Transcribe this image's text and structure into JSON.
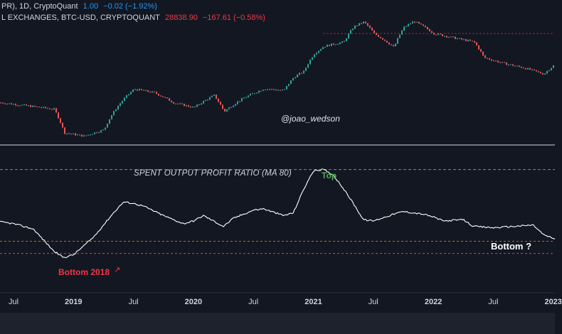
{
  "header": {
    "line1": {
      "symbol_suffix": "PR), 1D, CryptoQuant",
      "value": "1.00",
      "change": "−0.02 (−1.92%)"
    },
    "line2": {
      "symbol": "L EXCHANGES, BTC-USD, CRYPTOQUANT",
      "value": "28838.90",
      "change": "−167.61 (−0.58%)"
    }
  },
  "watermark": "@joao_wedson",
  "indicator_title": "SPENT OUTPUT PROFIT RATIO (MA 80)",
  "annotations": {
    "top": "Top",
    "bottom_2018": "Bottom 2018",
    "bottom_2018_arrow": "↗",
    "bottom_q": "Bottom ?"
  },
  "x_axis": {
    "ticks": [
      {
        "label": "Jul",
        "year": false
      },
      {
        "label": "2019",
        "year": true
      },
      {
        "label": "Jul",
        "year": false
      },
      {
        "label": "2020",
        "year": true
      },
      {
        "label": "Jul",
        "year": false
      },
      {
        "label": "2021",
        "year": true
      },
      {
        "label": "Jul",
        "year": false
      },
      {
        "label": "2022",
        "year": true
      },
      {
        "label": "Jul",
        "year": false
      },
      {
        "label": "2023",
        "year": true
      }
    ]
  },
  "colors": {
    "background": "#131722",
    "bull_candle": "#26a69a",
    "bear_candle": "#ef5350",
    "price_wick": "#b2b5be",
    "sopr_line": "#ffffff",
    "top_line": "#4caf50",
    "bottom_line": "#f23645",
    "orange_line": "#ff9800",
    "price_level_line": "#f23645"
  },
  "chart_data": [
    {
      "type": "line",
      "title": "",
      "series": [
        {
          "name": "",
          "x": [
            "2018-05",
            "2018-08",
            "2018-11",
            "2018-12",
            "2019-02",
            "2019-04",
            "2019-06",
            "2019-07",
            "2019-09",
            "2019-11",
            "2020-01",
            "2020-03",
            "2020-04",
            "2020-06",
            "2020-08",
            "2020-10",
            "2020-11",
            "2020-12",
            "2021-01",
            "2021-02",
            "2021-04",
            "2021-05",
            "2021-06",
            "2021-07",
            "2021-09",
            "2021-10",
            "2021-11",
            "2022-01",
            "2022-03",
            "2022-05",
            "2022-06",
            "2022-08",
            "2022-10",
            "2022-12",
            "2023-01"
          ],
          "y": [
            8300,
            7600,
            6900,
            3800,
            3500,
            4100,
            9000,
            11500,
            10500,
            8100,
            7200,
            9800,
            6500,
            9200,
            11600,
            11100,
            15600,
            18000,
            28000,
            34000,
            38000,
            56000,
            63000,
            47000,
            33000,
            55000,
            64000,
            47000,
            42000,
            38000,
            25500,
            22000,
            19700,
            16800,
            21000
          ]
        }
      ],
      "horizontal_levels": {
        "resistance": 47000
      }
    },
    {
      "type": "line",
      "title": "SPENT OUTPUT PROFIT RATIO (MA 80)",
      "series": [
        {
          "name": "",
          "x": [
            "2018-05",
            "2018-07",
            "2018-09",
            "2018-11",
            "2018-12",
            "2019-01",
            "2019-03",
            "2019-05",
            "2019-06",
            "2019-07",
            "2019-08",
            "2019-10",
            "2019-12",
            "2020-01",
            "2020-02",
            "2020-04",
            "2020-05",
            "2020-07",
            "2020-08",
            "2020-10",
            "2020-11",
            "2020-12",
            "2021-01",
            "2021-02",
            "2021-03",
            "2021-04",
            "2021-05",
            "2021-06",
            "2021-07",
            "2021-09",
            "2021-10",
            "2021-11",
            "2021-12",
            "2022-01",
            "2022-02",
            "2022-04",
            "2022-05",
            "2022-07",
            "2022-09",
            "2022-11",
            "2022-12",
            "2023-01"
          ],
          "y": [
            1.012,
            1.01,
            1.006,
            0.99,
            0.985,
            0.987,
            1.0,
            1.018,
            1.026,
            1.025,
            1.023,
            1.016,
            1.01,
            1.012,
            1.016,
            1.008,
            1.014,
            1.02,
            1.021,
            1.016,
            1.018,
            1.035,
            1.049,
            1.05,
            1.046,
            1.036,
            1.025,
            1.013,
            1.012,
            1.017,
            1.019,
            1.018,
            1.017,
            1.015,
            1.012,
            1.013,
            1.008,
            1.007,
            1.008,
            1.009,
            1.002,
            0.999
          ]
        }
      ],
      "reference_lines": {
        "top": 1.05,
        "bottom_upper": 0.997,
        "bottom_lower": 0.988
      }
    }
  ]
}
